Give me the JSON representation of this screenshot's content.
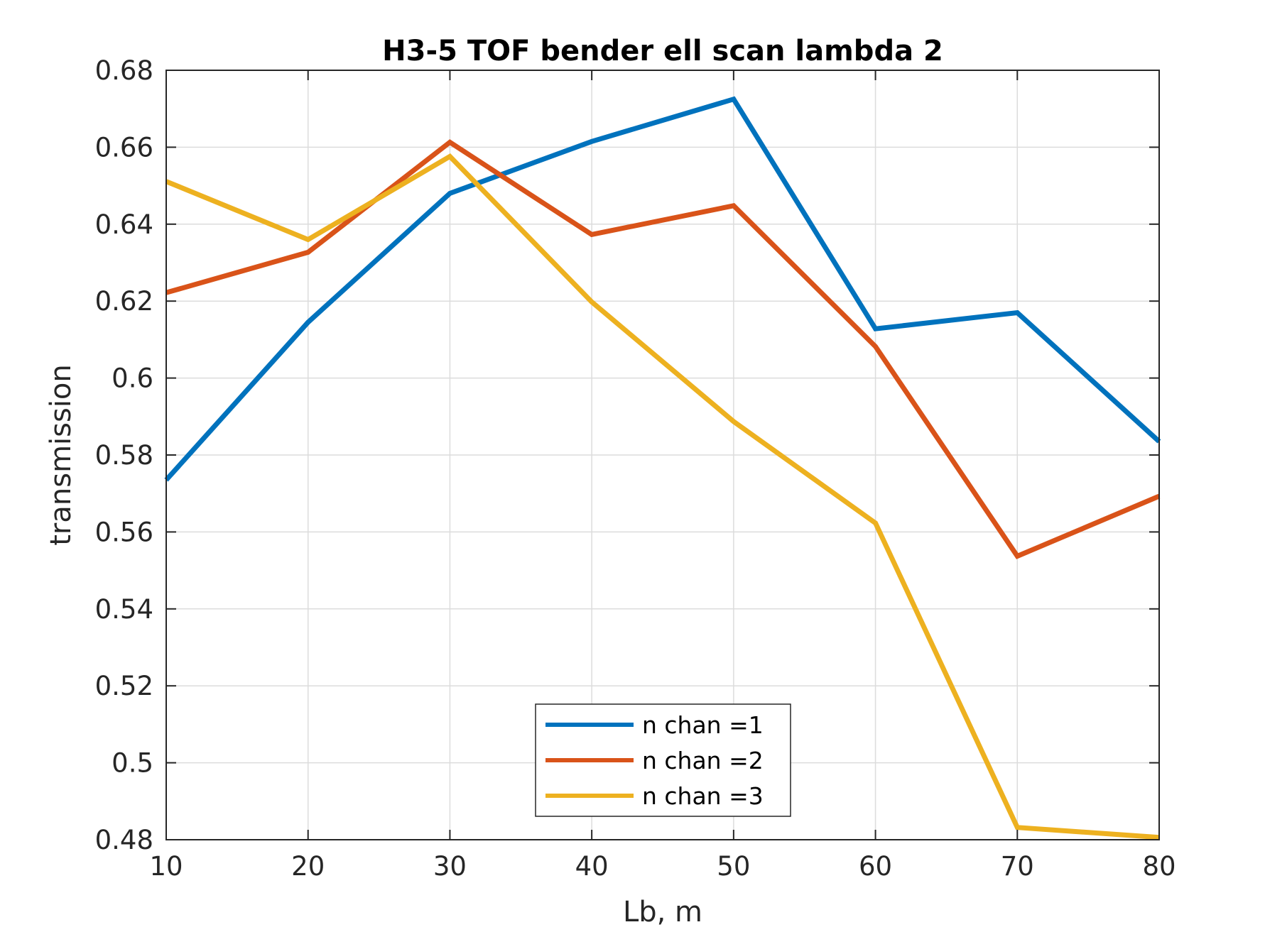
{
  "chart_data": {
    "type": "line",
    "title": "H3-5 TOF bender ell scan lambda 2",
    "xlabel": "Lb, m",
    "ylabel": "transmission",
    "xlim": [
      10,
      80
    ],
    "ylim": [
      0.48,
      0.68
    ],
    "xticks": [
      "10",
      "20",
      "30",
      "40",
      "50",
      "60",
      "70",
      "80"
    ],
    "yticks": [
      "0.48",
      "0.5",
      "0.52",
      "0.54",
      "0.56",
      "0.58",
      "0.6",
      "0.62",
      "0.64",
      "0.66",
      "0.68"
    ],
    "grid": true,
    "legend_position": "bottom-center",
    "x": [
      10,
      20,
      30,
      40,
      50,
      60,
      70,
      80
    ],
    "series": [
      {
        "name": "n chan =1",
        "color": "#0072BD",
        "values": [
          0.5735,
          0.6145,
          0.648,
          0.6615,
          0.6725,
          0.6128,
          0.617,
          0.5835
        ]
      },
      {
        "name": "n chan =2",
        "color": "#D95319",
        "values": [
          0.6222,
          0.6327,
          0.6613,
          0.6373,
          0.6448,
          0.6082,
          0.5537,
          0.5693
        ]
      },
      {
        "name": "n chan =3",
        "color": "#EDB120",
        "values": [
          0.6511,
          0.636,
          0.6576,
          0.6198,
          0.5887,
          0.5623,
          0.4832,
          0.4806
        ]
      }
    ]
  }
}
